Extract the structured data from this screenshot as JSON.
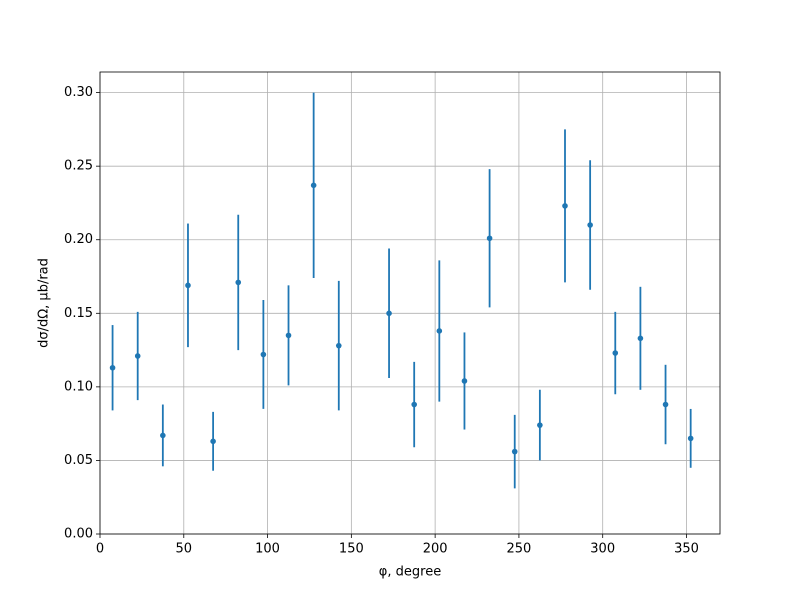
{
  "chart_data": {
    "type": "errorbar",
    "xlabel": "φ, degree",
    "ylabel": "dσ/dΩ, μb/rad",
    "x": [
      7.5,
      22.5,
      37.5,
      52.5,
      67.5,
      82.5,
      97.5,
      112.5,
      127.5,
      142.5,
      172.5,
      187.5,
      202.5,
      217.5,
      232.5,
      247.5,
      262.5,
      277.5,
      292.5,
      307.5,
      322.5,
      337.5,
      352.5
    ],
    "values": [
      0.113,
      0.121,
      0.067,
      0.169,
      0.063,
      0.171,
      0.122,
      0.135,
      0.237,
      0.128,
      0.15,
      0.088,
      0.138,
      0.104,
      0.201,
      0.056,
      0.074,
      0.223,
      0.21,
      0.123,
      0.133,
      0.088,
      0.065
    ],
    "errors": [
      0.029,
      0.03,
      0.021,
      0.042,
      0.02,
      0.046,
      0.037,
      0.034,
      0.063,
      0.044,
      0.044,
      0.029,
      0.048,
      0.033,
      0.047,
      0.025,
      0.024,
      0.052,
      0.044,
      0.028,
      0.035,
      0.027,
      0.02
    ],
    "color": "#1f77b4",
    "xlim": [
      0,
      370
    ],
    "xticks": [
      0,
      50,
      100,
      150,
      200,
      250,
      300,
      350
    ],
    "ylim": [
      0,
      0.314
    ],
    "yticks": [
      {
        "value": 0,
        "label": "0.00"
      },
      {
        "value": 0.05,
        "label": "0.05"
      },
      {
        "value": 0.1,
        "label": "0.10"
      },
      {
        "value": 0.15,
        "label": "0.15"
      },
      {
        "value": 0.2,
        "label": "0.20"
      },
      {
        "value": 0.25,
        "label": "0.25"
      },
      {
        "value": 0.3,
        "label": "0.30"
      }
    ],
    "grid": true
  }
}
